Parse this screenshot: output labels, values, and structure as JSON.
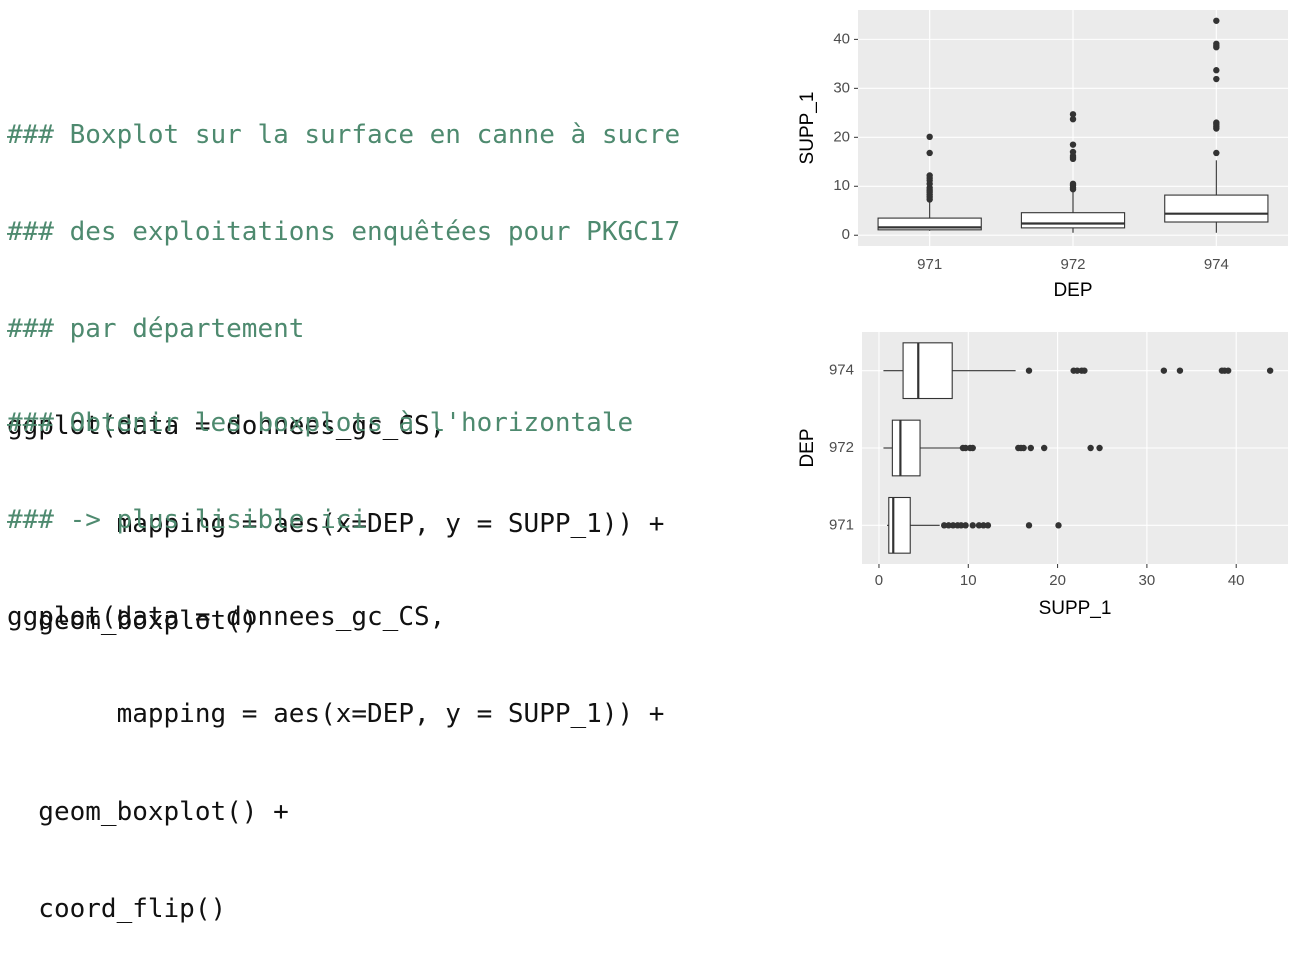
{
  "code": [
    {
      "lines": [
        "### Boxplot sur la surface en canne à sucre",
        "### des exploitations enquêtées pour PKGC17",
        "### par département",
        "ggplot(data = donnees_gc_CS,",
        "       mapping = aes(x=DEP, y = SUPP_1)) +",
        "  geom_boxplot()"
      ]
    },
    {
      "lines": [
        "### Obtenir les boxplots à l'horizontale",
        "### -> plus lisible ici",
        "ggplot(data = donnees_gc_CS,",
        "       mapping = aes(x=DEP, y = SUPP_1)) +",
        "  geom_boxplot() +",
        "  coord_flip()"
      ]
    }
  ],
  "chart_data": [
    {
      "type": "boxplot",
      "orientation": "vertical",
      "x_label": "DEP",
      "y_label": "SUPP_1",
      "categories": [
        "971",
        "972",
        "974"
      ],
      "boxes": [
        {
          "low": 0.9,
          "q1": 1.1,
          "median": 1.6,
          "q3": 3.5,
          "high": 6.8,
          "outliers": [
            7.3,
            7.8,
            8.3,
            8.8,
            9.2,
            9.7,
            10.5,
            11.2,
            11.7,
            12.2,
            16.8,
            20.1
          ]
        },
        {
          "low": 0.5,
          "q1": 1.5,
          "median": 2.4,
          "q3": 4.6,
          "high": 9.1,
          "outliers": [
            9.4,
            9.7,
            10.2,
            10.5,
            15.6,
            15.9,
            16.2,
            17.0,
            18.5,
            23.7,
            24.7
          ]
        },
        {
          "low": 0.5,
          "q1": 2.7,
          "median": 4.4,
          "q3": 8.2,
          "high": 15.3,
          "outliers": [
            16.8,
            21.8,
            22.2,
            22.7,
            23.0,
            31.9,
            33.7,
            38.4,
            38.7,
            39.1,
            43.8
          ]
        }
      ],
      "ylim": [
        -2.2,
        46
      ],
      "yticks": [
        0,
        10,
        20,
        30,
        40
      ],
      "grid": true
    },
    {
      "type": "boxplot",
      "orientation": "horizontal",
      "x_label": "SUPP_1",
      "y_label": "DEP",
      "categories": [
        "971",
        "972",
        "974"
      ],
      "boxes": [
        {
          "low": 0.9,
          "q1": 1.1,
          "median": 1.6,
          "q3": 3.5,
          "high": 6.8,
          "outliers": [
            7.3,
            7.8,
            8.3,
            8.8,
            9.2,
            9.7,
            10.5,
            11.2,
            11.7,
            12.2,
            16.8,
            20.1
          ]
        },
        {
          "low": 0.5,
          "q1": 1.5,
          "median": 2.4,
          "q3": 4.6,
          "high": 9.1,
          "outliers": [
            9.4,
            9.7,
            10.2,
            10.5,
            15.6,
            15.9,
            16.2,
            17.0,
            18.5,
            23.7,
            24.7
          ]
        },
        {
          "low": 0.5,
          "q1": 2.7,
          "median": 4.4,
          "q3": 8.2,
          "high": 15.3,
          "outliers": [
            16.8,
            21.8,
            22.2,
            22.7,
            23.0,
            31.9,
            33.7,
            38.4,
            38.7,
            39.1,
            43.8
          ]
        }
      ],
      "xlim": [
        -1.9,
        45.8
      ],
      "xticks": [
        0,
        10,
        20,
        30,
        40
      ],
      "grid": true
    }
  ]
}
